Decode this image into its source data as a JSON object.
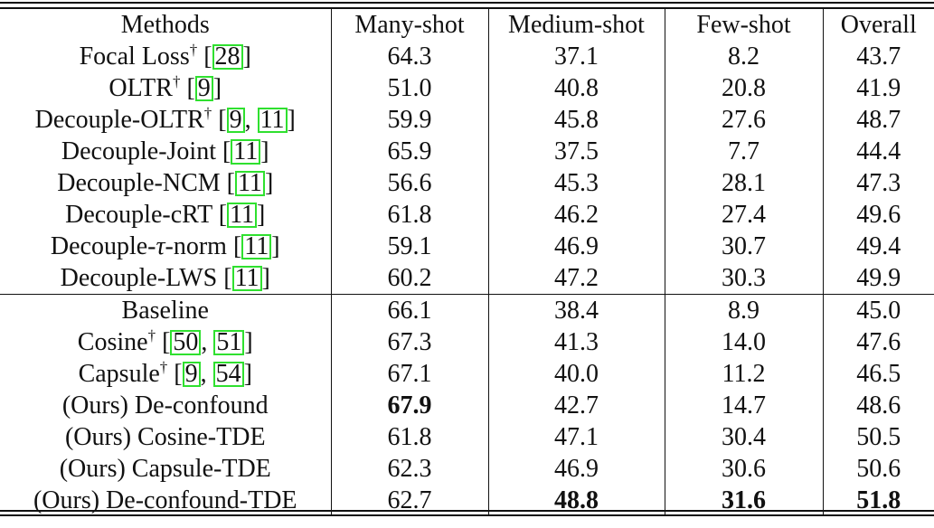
{
  "table": {
    "headers": [
      "Methods",
      "Many-shot",
      "Medium-shot",
      "Few-shot",
      "Overall"
    ],
    "rows": [
      {
        "method": "Focal Loss",
        "dagger": true,
        "cites": [
          "28"
        ],
        "values": [
          "64.3",
          "37.1",
          "8.2",
          "43.7"
        ],
        "bold": []
      },
      {
        "method": "OLTR",
        "dagger": true,
        "cites": [
          "9"
        ],
        "values": [
          "51.0",
          "40.8",
          "20.8",
          "41.9"
        ],
        "bold": []
      },
      {
        "method": "Decouple-OLTR",
        "dagger": true,
        "cites": [
          "9",
          "11"
        ],
        "values": [
          "59.9",
          "45.8",
          "27.6",
          "48.7"
        ],
        "bold": []
      },
      {
        "method": "Decouple-Joint",
        "dagger": false,
        "cites": [
          "11"
        ],
        "values": [
          "65.9",
          "37.5",
          "7.7",
          "44.4"
        ],
        "bold": []
      },
      {
        "method": "Decouple-NCM",
        "dagger": false,
        "cites": [
          "11"
        ],
        "values": [
          "56.6",
          "45.3",
          "28.1",
          "47.3"
        ],
        "bold": []
      },
      {
        "method": "Decouple-cRT",
        "dagger": false,
        "cites": [
          "11"
        ],
        "values": [
          "61.8",
          "46.2",
          "27.4",
          "49.6"
        ],
        "bold": []
      },
      {
        "method": "Decouple-τ-norm",
        "dagger": false,
        "cites": [
          "11"
        ],
        "values": [
          "59.1",
          "46.9",
          "30.7",
          "49.4"
        ],
        "bold": []
      },
      {
        "method": "Decouple-LWS",
        "dagger": false,
        "cites": [
          "11"
        ],
        "values": [
          "60.2",
          "47.2",
          "30.3",
          "49.9"
        ],
        "bold": []
      },
      {
        "method": "Baseline",
        "dagger": false,
        "cites": [],
        "values": [
          "66.1",
          "38.4",
          "8.9",
          "45.0"
        ],
        "bold": [],
        "separator": true
      },
      {
        "method": "Cosine",
        "dagger": true,
        "cites": [
          "50",
          "51"
        ],
        "values": [
          "67.3",
          "41.3",
          "14.0",
          "47.6"
        ],
        "bold": []
      },
      {
        "method": "Capsule",
        "dagger": true,
        "cites": [
          "9",
          "54"
        ],
        "values": [
          "67.1",
          "40.0",
          "11.2",
          "46.5"
        ],
        "bold": []
      },
      {
        "method": "(Ours) De-confound",
        "dagger": false,
        "cites": [],
        "values": [
          "67.9",
          "42.7",
          "14.7",
          "48.6"
        ],
        "bold": [
          0
        ]
      },
      {
        "method": "(Ours) Cosine-TDE",
        "dagger": false,
        "cites": [],
        "values": [
          "61.8",
          "47.1",
          "30.4",
          "50.5"
        ],
        "bold": []
      },
      {
        "method": "(Ours) Capsule-TDE",
        "dagger": false,
        "cites": [],
        "values": [
          "62.3",
          "46.9",
          "30.6",
          "50.6"
        ],
        "bold": []
      },
      {
        "method": "(Ours) De-confound-TDE",
        "dagger": false,
        "cites": [],
        "values": [
          "62.7",
          "48.8",
          "31.6",
          "51.8"
        ],
        "bold": [
          1,
          2,
          3
        ]
      }
    ],
    "dagger_symbol": "†",
    "cite_box_color": "#2fe02f"
  }
}
